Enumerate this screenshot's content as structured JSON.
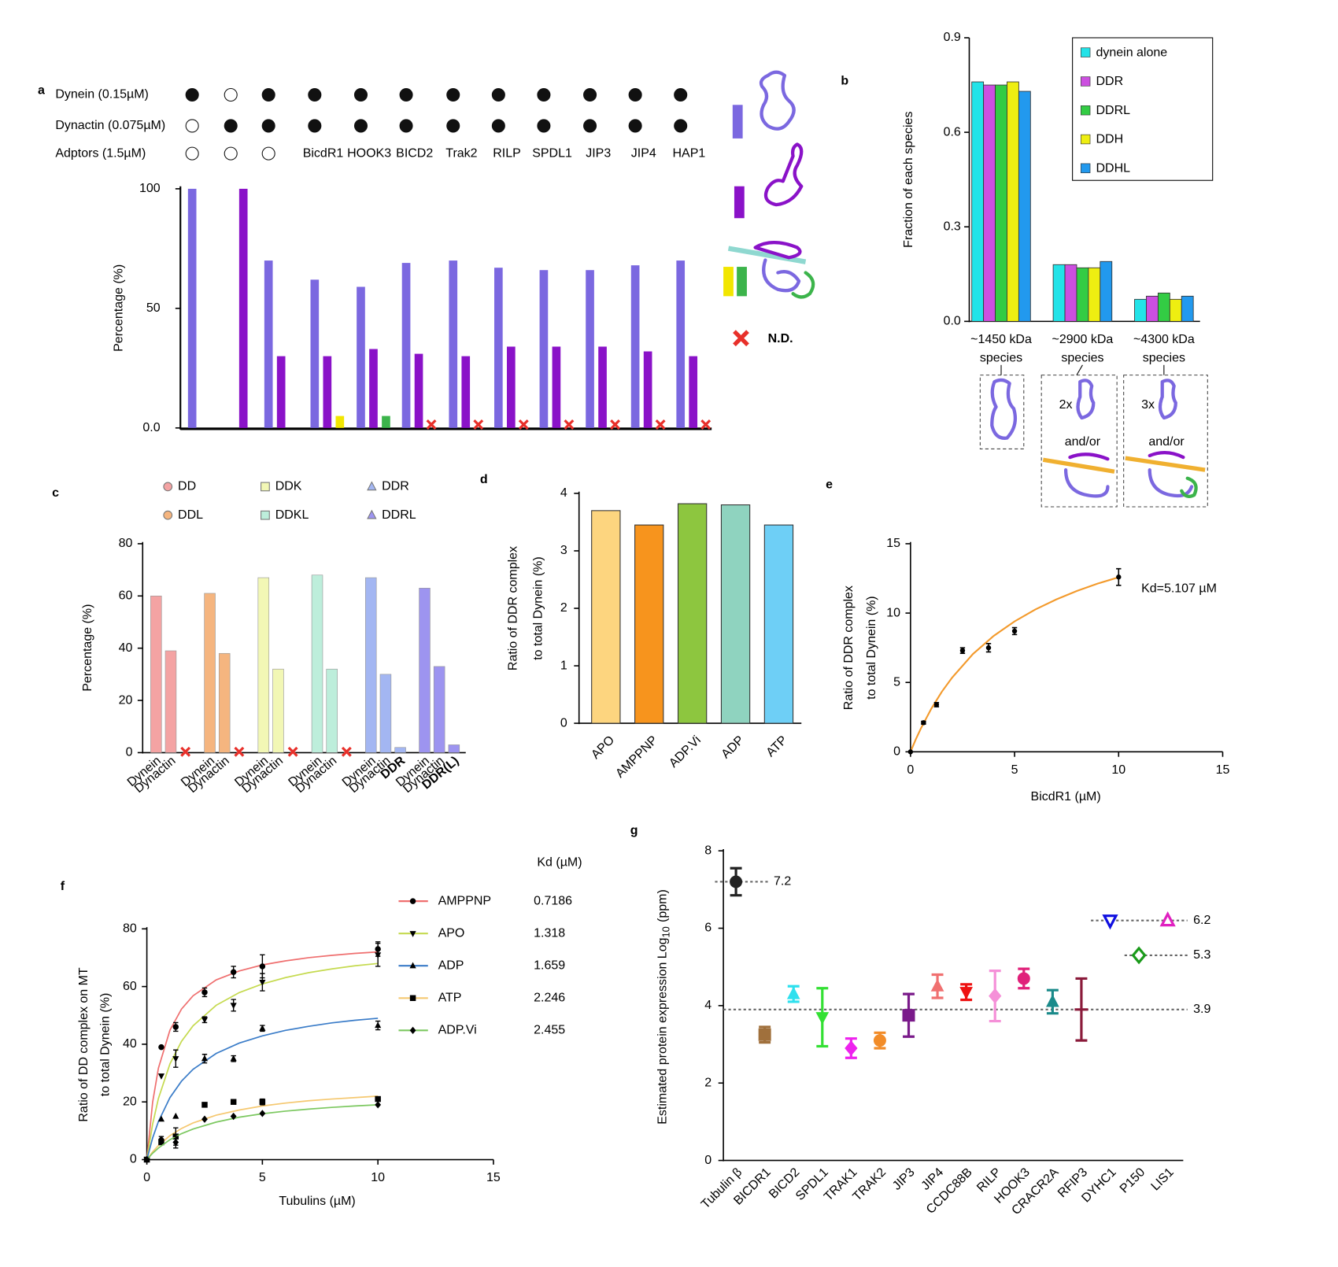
{
  "chart_data": [
    {
      "panel": "a",
      "type": "bar",
      "header": [
        {
          "label": "Dynein (0.15µM)",
          "present": [
            true,
            false,
            true,
            true,
            true,
            true,
            true,
            true,
            true,
            true,
            true,
            true
          ]
        },
        {
          "label": "Dynactin (0.075µM)",
          "present": [
            false,
            true,
            true,
            true,
            true,
            true,
            true,
            true,
            true,
            true,
            true,
            true
          ]
        },
        {
          "label": "Adptors (1.5µM)",
          "present": [
            false,
            false,
            false,
            true,
            true,
            true,
            true,
            true,
            true,
            true,
            true,
            true
          ]
        }
      ],
      "categories": [
        null,
        null,
        null,
        "BicdR1",
        "HOOK3",
        "BICD2",
        "Trak2",
        "RILP",
        "SPDL1",
        "JIP3",
        "JIP4",
        "HAP1"
      ],
      "series": [
        {
          "color": "#7b68e0",
          "values": [
            100,
            null,
            70,
            62,
            59,
            69,
            70,
            67,
            66,
            66,
            68,
            70
          ]
        },
        {
          "color": "#8a12c8",
          "values": [
            null,
            100,
            30,
            30,
            33,
            31,
            30,
            34,
            34,
            34,
            32,
            30
          ]
        },
        {
          "color": "#f2e600",
          "values": [
            null,
            null,
            null,
            5,
            null,
            null,
            null,
            null,
            null,
            null,
            null,
            null
          ]
        },
        {
          "color": "#3cb44b",
          "values": [
            null,
            null,
            null,
            null,
            5,
            null,
            null,
            null,
            null,
            null,
            null,
            null
          ]
        }
      ],
      "not_detected": [
        false,
        false,
        false,
        false,
        false,
        true,
        true,
        true,
        true,
        true,
        true,
        true
      ],
      "nd_label": "N.D.",
      "ylabel": "Percentage (%)",
      "ylim": [
        0,
        100
      ],
      "yticks": [
        {
          "value": 0,
          "label": "0.0"
        },
        50,
        100
      ]
    },
    {
      "panel": "b",
      "type": "bar",
      "categories": [
        [
          "~1450 kDa",
          "species"
        ],
        [
          "~2900 kDa",
          "species"
        ],
        [
          "~4300 kDa",
          "species"
        ]
      ],
      "series": [
        {
          "name": "dynein alone",
          "color": "#22e3e8",
          "values": [
            0.76,
            0.18,
            0.07
          ]
        },
        {
          "name": "DDR",
          "color": "#cc4fe0",
          "values": [
            0.75,
            0.18,
            0.08
          ]
        },
        {
          "name": "DDRL",
          "color": "#33cc44",
          "values": [
            0.75,
            0.17,
            0.09
          ]
        },
        {
          "name": "DDH",
          "color": "#eeee11",
          "values": [
            0.76,
            0.17,
            0.07
          ]
        },
        {
          "name": "DDHL",
          "color": "#2299ee",
          "values": [
            0.73,
            0.19,
            0.08
          ]
        }
      ],
      "legend": "top-right",
      "annotations": [
        "2x",
        "and/or",
        "3x",
        "and/or"
      ],
      "ylabel": "Fraction of each species",
      "ylim": [
        0,
        0.9
      ],
      "yticks": [
        {
          "value": 0,
          "label": "0.0"
        },
        0.3,
        0.6,
        0.9
      ]
    },
    {
      "panel": "c",
      "type": "bar",
      "series": [
        {
          "name": "DD",
          "color": "#f4a3a3",
          "marker": "circle",
          "values": [
            60,
            39,
            null
          ],
          "labels": [
            "Dynein",
            "Dynactin",
            null
          ],
          "not_detected": [
            false,
            false,
            true
          ]
        },
        {
          "name": "DDL",
          "color": "#f5b57f",
          "marker": "circle",
          "values": [
            61,
            38,
            null
          ],
          "labels": [
            "Dynein",
            "Dynactin",
            null
          ],
          "not_detected": [
            false,
            false,
            true
          ]
        },
        {
          "name": "DDK",
          "color": "#f2f7b5",
          "marker": "square",
          "values": [
            67,
            32,
            null
          ],
          "labels": [
            "Dynein",
            "Dynactin",
            null
          ],
          "not_detected": [
            false,
            false,
            true
          ]
        },
        {
          "name": "DDKL",
          "color": "#bdeedb",
          "marker": "square",
          "values": [
            68,
            32,
            null
          ],
          "labels": [
            "Dynein",
            "Dynactin",
            null
          ],
          "not_detected": [
            false,
            false,
            true
          ]
        },
        {
          "name": "DDR",
          "color": "#a3b6f2",
          "marker": "triangle-up",
          "values": [
            67,
            30,
            2
          ],
          "labels": [
            "Dynein",
            "Dynactin",
            "DDR"
          ],
          "not_detected": [
            false,
            false,
            false
          ]
        },
        {
          "name": "DDRL",
          "color": "#9d94f0",
          "marker": "triangle-up",
          "values": [
            63,
            33,
            3
          ],
          "labels": [
            "Dynein",
            "Dynactin",
            "DDR(L)"
          ],
          "not_detected": [
            false,
            false,
            false
          ]
        }
      ],
      "ylabel": "Percentage (%)",
      "ylim": [
        0,
        80
      ],
      "yticks": [
        0,
        20,
        40,
        60,
        80
      ]
    },
    {
      "panel": "d",
      "type": "bar",
      "categories": [
        "APO",
        "AMPPNP",
        "ADP.Vi",
        "ADP",
        "ATP"
      ],
      "values": [
        3.7,
        3.45,
        3.82,
        3.8,
        3.45
      ],
      "colors": [
        "#fdd57f",
        "#f7941d",
        "#8dc63f",
        "#8fd3bf",
        "#6ecff6"
      ],
      "ylabel": [
        "Ratio of DDR complex",
        "to total Dynein (%)"
      ],
      "ylim": [
        0,
        4
      ],
      "yticks": [
        0,
        1,
        2,
        3,
        4
      ]
    },
    {
      "panel": "e",
      "type": "scatter",
      "x": [
        0,
        0.625,
        1.25,
        2.5,
        3.75,
        5,
        10
      ],
      "values": [
        0,
        2.1,
        3.4,
        7.3,
        7.5,
        8.7,
        12.6
      ],
      "errors": [
        0,
        0.1,
        0.15,
        0.2,
        0.3,
        0.25,
        0.6
      ],
      "color": "#000000",
      "fit": {
        "color": "#f39a2c",
        "x": [
          0,
          0.25,
          0.5,
          1,
          1.5,
          2,
          3,
          4,
          5,
          6,
          7,
          8,
          9,
          10
        ],
        "y": [
          0,
          0.89,
          1.69,
          3.11,
          4.32,
          5.35,
          7.05,
          8.36,
          9.4,
          10.26,
          10.98,
          11.6,
          12.13,
          12.58
        ]
      },
      "annotation": "Kd=5.107 µM",
      "xlabel": "BicdR1 (µM)",
      "ylabel": [
        "Ratio of DDR complex",
        "to total Dynein (%)"
      ],
      "xlim": [
        0,
        15
      ],
      "xticks": [
        0,
        5,
        10,
        15
      ],
      "ylim": [
        0,
        15
      ],
      "yticks": [
        0,
        5,
        10,
        15
      ]
    },
    {
      "panel": "f",
      "type": "scatter",
      "x": [
        0,
        0.625,
        1.25,
        2.5,
        3.75,
        5,
        10
      ],
      "fit_x": [
        0,
        0.25,
        0.5,
        1,
        1.5,
        2,
        3,
        4,
        5,
        6,
        7,
        8,
        9,
        10
      ],
      "legend_title": "Kd (µM)",
      "series": [
        {
          "name": "AMPPNP",
          "color": "#ef6f6f",
          "marker": "circle",
          "kd": 0.7186,
          "values": [
            0,
            39,
            46,
            58,
            65,
            67,
            73
          ],
          "errors": [
            0,
            0,
            1.5,
            1.5,
            2,
            4,
            2.5
          ],
          "fit_y": [
            0,
            19.9,
            31.7,
            44.9,
            52.2,
            56.8,
            62.3,
            65.4,
            67.5,
            68.9,
            70.0,
            70.8,
            71.5,
            72.0
          ]
        },
        {
          "name": "APO",
          "color": "#c5da4f",
          "marker": "triangle-down",
          "kd": 1.318,
          "values": [
            0,
            29,
            35,
            48.5,
            53.5,
            61.5,
            71
          ],
          "errors": [
            0,
            0,
            3,
            1,
            2,
            3,
            4
          ],
          "fit_y": [
            0,
            12.3,
            21.2,
            33.2,
            41.0,
            46.4,
            53.5,
            57.9,
            60.9,
            63.1,
            64.8,
            66.1,
            67.2,
            68.0
          ]
        },
        {
          "name": "ADP",
          "color": "#3a7cc8",
          "marker": "triangle-up",
          "kd": 1.659,
          "values": [
            0,
            14,
            15,
            35,
            35,
            45.5,
            46.5
          ],
          "errors": [
            0,
            0,
            0,
            1.5,
            1,
            1,
            1.5
          ],
          "fit_y": [
            0,
            7.5,
            13.2,
            21.5,
            27.2,
            31.3,
            36.8,
            40.4,
            42.9,
            44.8,
            46.2,
            47.4,
            48.3,
            49.0
          ]
        },
        {
          "name": "ATP",
          "color": "#f5c870",
          "marker": "square",
          "kd": 2.246,
          "values": [
            0,
            6,
            8,
            19,
            20,
            20,
            21
          ],
          "errors": [
            0,
            0,
            3,
            0,
            0,
            1,
            0
          ],
          "fit_y": [
            0,
            2.7,
            4.9,
            8.3,
            10.8,
            12.7,
            15.4,
            17.2,
            18.6,
            19.6,
            20.4,
            21.0,
            21.5,
            22.0
          ]
        },
        {
          "name": "ADP.Vi",
          "color": "#7cc860",
          "marker": "diamond",
          "kd": 2.455,
          "values": [
            0,
            7,
            6,
            14,
            15,
            16,
            19
          ],
          "errors": [
            0,
            1,
            2,
            0,
            0,
            0,
            0
          ],
          "fit_y": [
            0,
            2.2,
            4.0,
            6.9,
            9.0,
            10.6,
            13.0,
            14.7,
            15.9,
            16.8,
            17.5,
            18.1,
            18.6,
            19.0
          ]
        }
      ],
      "xlabel": "Tubulins (µM)",
      "ylabel": [
        "Ratio of DD complex on MT",
        "to total Dynein (%)"
      ],
      "xlim": [
        0,
        15
      ],
      "xticks": [
        0,
        5,
        10,
        15
      ],
      "ylim": [
        0,
        80
      ],
      "yticks": [
        0,
        20,
        40,
        60,
        80
      ]
    },
    {
      "panel": "g",
      "type": "scatter",
      "categories": [
        "Tubulin β",
        "BICDR1",
        "BICD2",
        "SPDL1",
        "TRAK1",
        "TRAK2",
        "JIP3",
        "JIP4",
        "CCDC88B",
        "RILP",
        "HOOK3",
        "CRACR2A",
        "RFIP3",
        "DYHC1",
        "P150",
        "LIS1"
      ],
      "values": [
        7.2,
        3.25,
        4.3,
        3.7,
        2.9,
        3.1,
        3.75,
        4.5,
        4.35,
        4.25,
        4.7,
        4.1,
        3.9,
        6.2,
        5.3,
        6.2
      ],
      "errors": [
        0.35,
        0.2,
        0.2,
        0.75,
        0.25,
        0.2,
        0.55,
        0.3,
        0.2,
        0.65,
        0.25,
        0.3,
        0.8,
        0,
        0,
        0
      ],
      "colors": [
        "#222222",
        "#a0703c",
        "#2ee0ee",
        "#33e033",
        "#ee22ee",
        "#f28c28",
        "#7a1a8a",
        "#f07070",
        "#ee1111",
        "#f590d8",
        "#e0207a",
        "#1a8a8a",
        "#8a1a3a",
        "#1010e0",
        "#1a9a1a",
        "#e020c0"
      ],
      "markers": [
        "circle",
        "square",
        "triangle-up",
        "triangle-down",
        "diamond",
        "circle",
        "square",
        "triangle-up",
        "triangle-down",
        "diamond",
        "circle",
        "triangle-up",
        "none",
        "triangle-down-open",
        "diamond-open",
        "triangle-up-open"
      ],
      "reference_lines": [
        7.2,
        3.9,
        6.2,
        5.3
      ],
      "ylabel": [
        "Estimated protein expression Log",
        "10",
        "(ppm)"
      ],
      "ylim": [
        0,
        8
      ],
      "yticks": [
        0,
        2,
        4,
        6,
        8
      ]
    }
  ]
}
